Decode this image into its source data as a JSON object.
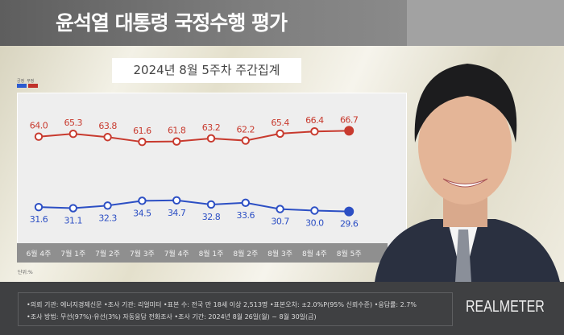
{
  "header": {
    "title": "윤석열 대통령 국정수행 평가",
    "subtitle": "2024년 8월 5주차 주간집계"
  },
  "chart_data": {
    "type": "line",
    "categories": [
      "6월 4주",
      "7월 1주",
      "7월 2주",
      "7월 3주",
      "7월 4주",
      "8월 1주",
      "8월 2주",
      "8월 3주",
      "8월 4주",
      "8월 5주"
    ],
    "series": [
      {
        "name": "긍정",
        "color": "#2c4fc4",
        "values": [
          31.6,
          31.1,
          32.3,
          34.5,
          34.7,
          32.8,
          33.6,
          30.7,
          30.0,
          29.6
        ]
      },
      {
        "name": "부정",
        "color": "#c83a2e",
        "values": [
          64.0,
          65.3,
          63.8,
          61.6,
          61.8,
          63.2,
          62.2,
          65.4,
          66.4,
          66.7
        ]
      }
    ],
    "unit_label": "단위:%",
    "legend": "top-left",
    "grid": false
  },
  "footer": {
    "line1": "•의뢰 기관: 에너지경제신문 •조사 기관: 리얼미터 •표본 수: 전국 만 18세 이상 2,513명 •표본오차: ±2.0%P(95% 신뢰수준) •응답률: 2.7%",
    "line2": "•조사 방법: 무선(97%)·유선(3%) 자동응답 전화조사 •조사 기간: 2024년 8월 26일(월) ~ 8월 30일(금)",
    "logo": "REALMETER"
  }
}
